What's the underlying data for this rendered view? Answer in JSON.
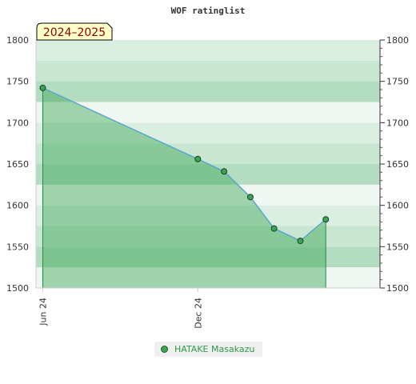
{
  "chart_data": {
    "type": "area",
    "title": "WOF ratinglist",
    "season_label": "2024–2025",
    "ylim": [
      1500,
      1800
    ],
    "yticks": [
      1500,
      1550,
      1600,
      1650,
      1700,
      1750,
      1800
    ],
    "xlim": [
      "2024-05-24",
      "2025-07-04"
    ],
    "xticks": [
      {
        "date": "2024-06-01",
        "label": "Jun 24"
      },
      {
        "date": "2024-12-01",
        "label": "Dec 24"
      }
    ],
    "series": [
      {
        "name": "HATAKE Masakazu",
        "color": "#3aa655",
        "line_color": "#5ba7c9",
        "points": [
          {
            "x": "2024-06-01",
            "y": 1742
          },
          {
            "x": "2024-12-01",
            "y": 1656
          },
          {
            "x": "2025-01-01",
            "y": 1641
          },
          {
            "x": "2025-02-01",
            "y": 1610
          },
          {
            "x": "2025-03-01",
            "y": 1572
          },
          {
            "x": "2025-04-01",
            "y": 1557
          },
          {
            "x": "2025-05-01",
            "y": 1583
          }
        ]
      }
    ],
    "grid": true,
    "legend_position": "bottom-center",
    "legend": {
      "label": "HATAKE Masakazu",
      "color": "#3aa655"
    }
  }
}
